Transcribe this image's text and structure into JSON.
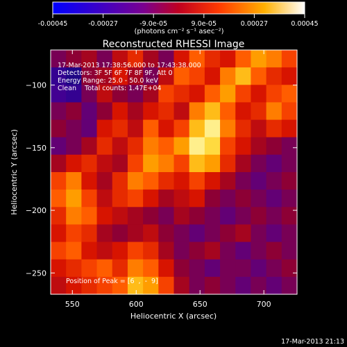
{
  "colorbar": {
    "tick_labels": [
      "-0.00045",
      "-0.00027",
      "-9.0e-05",
      "9.0e-05",
      "0.00027",
      "0.00045"
    ],
    "units": "(photons cm⁻² s⁻¹ asec⁻²)",
    "range": [
      -0.00045,
      0.00045
    ]
  },
  "annotations": {
    "time_range": "17-Mar-2013 17:38:56.000 to 17:43:38.000",
    "detectors": "Detectors: 3F 5F 6F 7F 8F 9F, Att 0",
    "energy": "Energy Range: 25.0 - 50.0 keV",
    "clean": "Clean    Total counts: 1.47E+04",
    "peak": "Position of Peak = [6  ,  -  9]"
  },
  "footer": {
    "timestamp": "17-Mar-2013 21:13"
  },
  "chart_data": {
    "type": "heatmap",
    "title": "Reconstructed RHESSI Image",
    "xlabel": "Heliocentric X (arcsec)",
    "ylabel": "Heliocentric Y (arcsec)",
    "xlim": [
      533,
      726
    ],
    "ylim": [
      -267,
      -72
    ],
    "x_ticks": [
      550,
      600,
      650,
      700
    ],
    "y_ticks": [
      -100,
      -150,
      -200,
      -250
    ],
    "x_tick_labels": [
      "550",
      "600",
      "650",
      "700"
    ],
    "y_tick_labels": [
      "−100",
      "−150",
      "−200",
      "−250"
    ],
    "colormap": "rainbow-to-heat (blue, purple, red, orange, yellow, white)",
    "intensity_grid_rows_top_to_bottom": [
      [
        0.35,
        0.4,
        0.45,
        0.35,
        0.5,
        0.6,
        0.45,
        0.35,
        0.55,
        0.7,
        0.6,
        0.55,
        0.7,
        0.8,
        0.75,
        0.65
      ],
      [
        0.1,
        0.05,
        0.4,
        0.45,
        0.55,
        0.45,
        0.35,
        0.5,
        0.7,
        0.65,
        0.55,
        0.75,
        0.85,
        0.7,
        0.6,
        0.55
      ],
      [
        0.15,
        0.1,
        0.35,
        0.5,
        0.4,
        0.35,
        0.45,
        0.65,
        0.6,
        0.55,
        0.7,
        0.8,
        0.65,
        0.55,
        0.65,
        0.7
      ],
      [
        0.35,
        0.4,
        0.3,
        0.4,
        0.55,
        0.45,
        0.55,
        0.6,
        0.5,
        0.75,
        0.85,
        0.7,
        0.55,
        0.6,
        0.75,
        0.65
      ],
      [
        0.4,
        0.35,
        0.3,
        0.55,
        0.6,
        0.5,
        0.7,
        0.55,
        0.65,
        0.85,
        0.95,
        0.75,
        0.6,
        0.5,
        0.6,
        0.55
      ],
      [
        0.3,
        0.35,
        0.45,
        0.6,
        0.5,
        0.6,
        0.75,
        0.7,
        0.8,
        0.95,
        0.9,
        0.65,
        0.55,
        0.45,
        0.4,
        0.35
      ],
      [
        0.45,
        0.55,
        0.6,
        0.5,
        0.45,
        0.65,
        0.8,
        0.75,
        0.65,
        0.85,
        0.8,
        0.6,
        0.45,
        0.35,
        0.3,
        0.35
      ],
      [
        0.65,
        0.75,
        0.55,
        0.45,
        0.6,
        0.75,
        0.7,
        0.6,
        0.55,
        0.65,
        0.55,
        0.45,
        0.35,
        0.3,
        0.35,
        0.4
      ],
      [
        0.7,
        0.8,
        0.65,
        0.5,
        0.6,
        0.65,
        0.55,
        0.45,
        0.5,
        0.55,
        0.4,
        0.35,
        0.4,
        0.35,
        0.3,
        0.35
      ],
      [
        0.6,
        0.75,
        0.7,
        0.55,
        0.5,
        0.45,
        0.4,
        0.35,
        0.45,
        0.4,
        0.35,
        0.3,
        0.35,
        0.4,
        0.35,
        0.4
      ],
      [
        0.55,
        0.65,
        0.6,
        0.45,
        0.4,
        0.45,
        0.5,
        0.4,
        0.35,
        0.3,
        0.35,
        0.4,
        0.45,
        0.35,
        0.3,
        0.35
      ],
      [
        0.65,
        0.7,
        0.55,
        0.5,
        0.55,
        0.65,
        0.6,
        0.45,
        0.35,
        0.4,
        0.45,
        0.35,
        0.3,
        0.35,
        0.4,
        0.35
      ],
      [
        0.55,
        0.6,
        0.65,
        0.7,
        0.6,
        0.75,
        0.7,
        0.55,
        0.4,
        0.35,
        0.3,
        0.35,
        0.35,
        0.3,
        0.35,
        0.4
      ],
      [
        0.5,
        0.55,
        0.6,
        0.65,
        0.7,
        0.85,
        0.8,
        0.65,
        0.45,
        0.35,
        0.4,
        0.35,
        0.3,
        0.35,
        0.3,
        0.35
      ]
    ],
    "grid": false
  }
}
